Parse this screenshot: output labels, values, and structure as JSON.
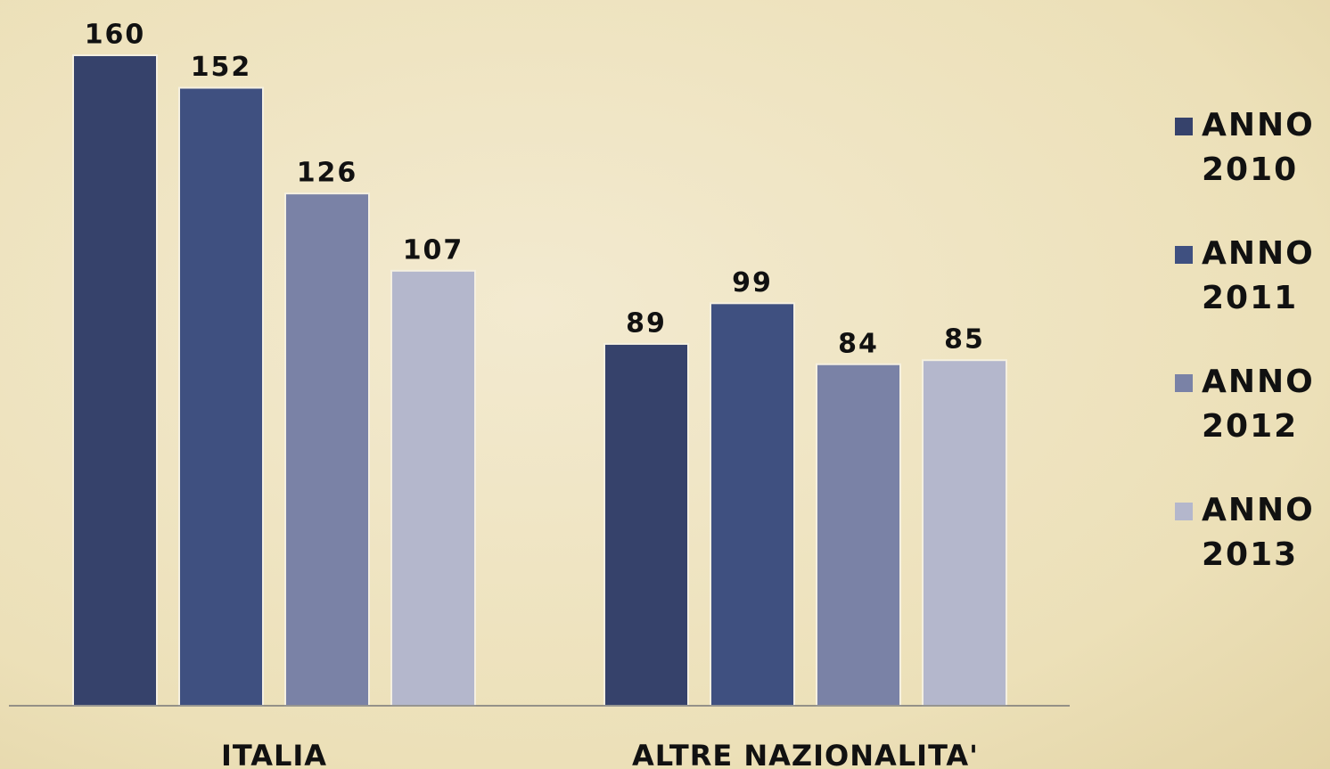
{
  "chart_data": {
    "type": "bar",
    "categories": [
      "ITALIA",
      "ALTRE NAZIONALITA'"
    ],
    "series": [
      {
        "name": "ANNO 2010",
        "color": "#36426b",
        "values": [
          160,
          89
        ]
      },
      {
        "name": "ANNO 2011",
        "color": "#3f5080",
        "values": [
          152,
          99
        ]
      },
      {
        "name": "ANNO 2012",
        "color": "#7a82a6",
        "values": [
          126,
          84
        ]
      },
      {
        "name": "ANNO 2013",
        "color": "#b4b7cc",
        "values": [
          107,
          85
        ]
      }
    ],
    "legend": "right"
  }
}
